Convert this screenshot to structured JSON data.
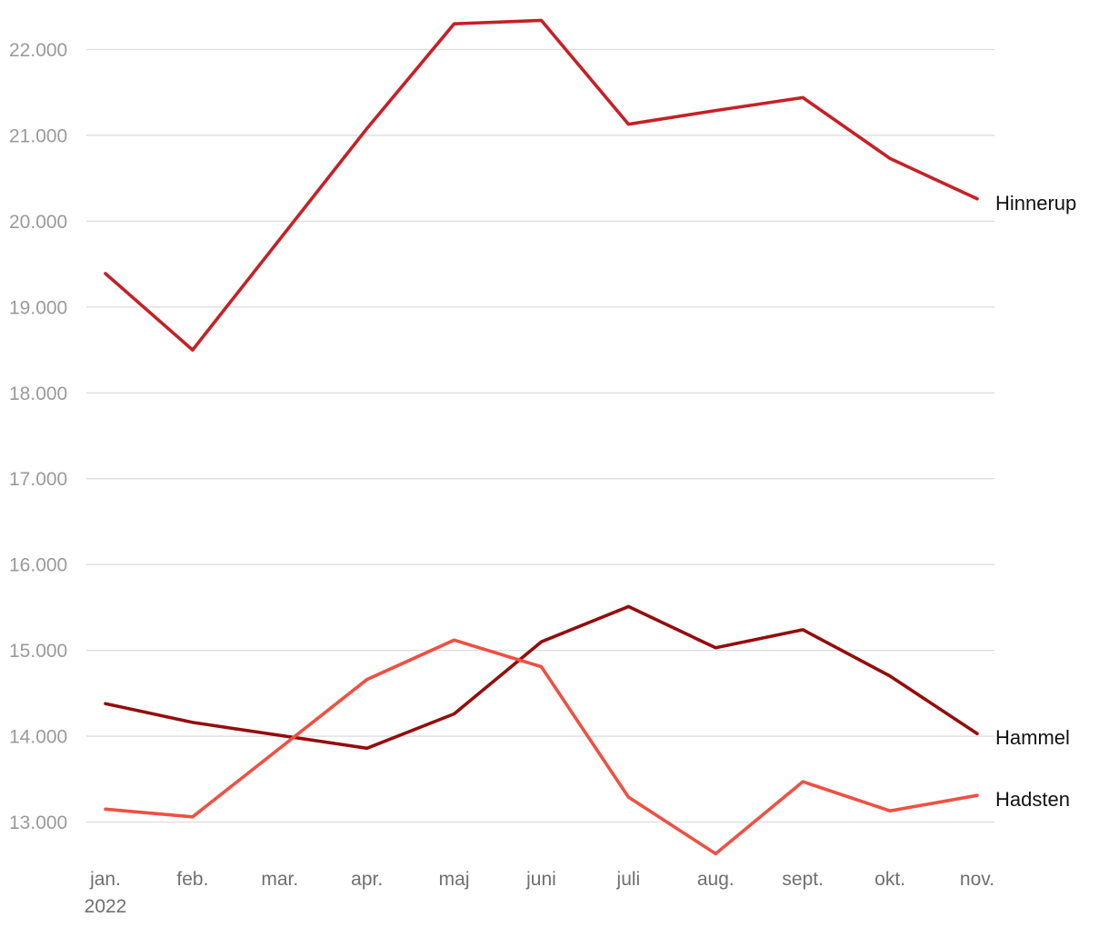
{
  "chart_data": {
    "type": "line",
    "title": "",
    "xlabel": "",
    "ylabel": "",
    "categories": [
      "jan.",
      "feb.",
      "mar.",
      "apr.",
      "maj",
      "juni",
      "juli",
      "aug.",
      "sept.",
      "okt.",
      "nov."
    ],
    "year_label": "2022",
    "ylim": [
      12800,
      22400
    ],
    "y_ticks": [
      13000,
      14000,
      15000,
      16000,
      17000,
      18000,
      19000,
      20000,
      21000,
      22000
    ],
    "y_tick_labels": [
      "13.000",
      "14.000",
      "15.000",
      "16.000",
      "17.000",
      "18.000",
      "19.000",
      "20.000",
      "21.000",
      "22.000"
    ],
    "grid": true,
    "legend": "end-of-line labels",
    "series": [
      {
        "name": "Hinnerup",
        "color": "#c62026",
        "values": [
          19390,
          18500,
          null,
          21080,
          22300,
          22340,
          21130,
          21290,
          21440,
          20730,
          20260
        ]
      },
      {
        "name": "Hammel",
        "color": "#950c0c",
        "values": [
          14380,
          14160,
          null,
          13860,
          14260,
          15100,
          15510,
          15030,
          15240,
          14700,
          14030
        ]
      },
      {
        "name": "Hadsten",
        "color": "#ef5043",
        "values": [
          13150,
          13060,
          null,
          14660,
          15120,
          14810,
          13290,
          12630,
          13470,
          13130,
          13310
        ]
      }
    ]
  }
}
